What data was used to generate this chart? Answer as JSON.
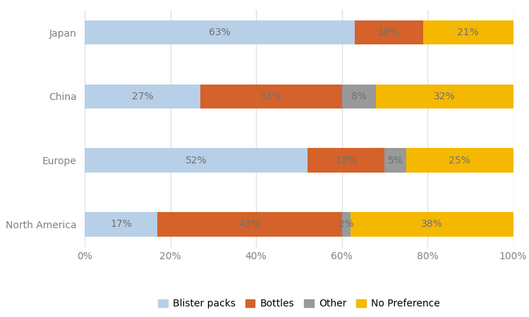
{
  "categories": [
    "North America",
    "Europe",
    "China",
    "Japan"
  ],
  "series": {
    "Blister packs": [
      17,
      52,
      27,
      63
    ],
    "Bottles": [
      43,
      18,
      33,
      16
    ],
    "Other": [
      2,
      5,
      8,
      0
    ],
    "No Preference": [
      38,
      25,
      32,
      21
    ]
  },
  "colors": {
    "Blister packs": "#b8cfe8",
    "Bottles": "#d4622a",
    "Other": "#999999",
    "No Preference": "#f5b800"
  },
  "bar_height": 0.38,
  "xlim": [
    0,
    100
  ],
  "xticks": [
    0,
    20,
    40,
    60,
    80,
    100
  ],
  "xticklabels": [
    "0%",
    "20%",
    "40%",
    "60%",
    "80%",
    "100%"
  ],
  "background_color": "#ffffff",
  "grid_color": "#e0e0e0",
  "legend_labels": [
    "Blister packs",
    "Bottles",
    "Other",
    "No Preference"
  ],
  "label_fontsize": 10,
  "tick_fontsize": 10,
  "legend_fontsize": 10,
  "text_color": "#808080",
  "label_color": "#707070"
}
